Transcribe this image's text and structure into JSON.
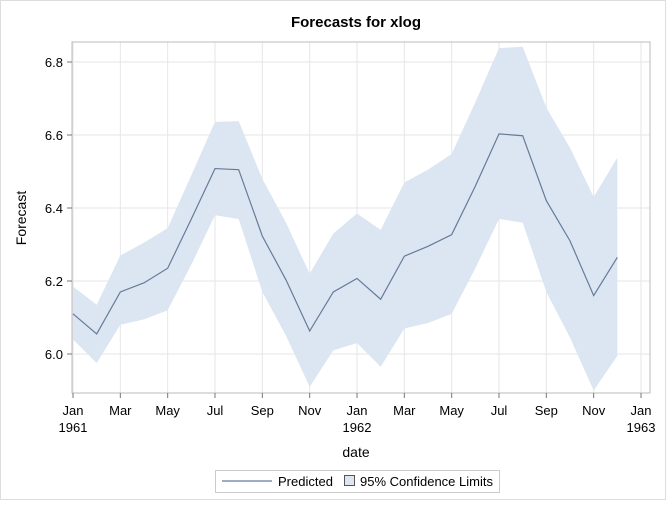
{
  "chart_data": {
    "type": "line",
    "title": "Forecasts for xlog",
    "xlabel": "date",
    "ylabel": "Forecast",
    "ylim": [
      5.89,
      6.86
    ],
    "xlim": [
      "1961-01",
      "1963-01"
    ],
    "grid": true,
    "legend_placement": "bottom",
    "yticks": [
      "6.0",
      "6.2",
      "6.4",
      "6.6",
      "6.8"
    ],
    "xticks": [
      {
        "label": "Jan",
        "sub": "1961",
        "m": 0
      },
      {
        "label": "Mar",
        "sub": "",
        "m": 2
      },
      {
        "label": "May",
        "sub": "",
        "m": 4
      },
      {
        "label": "Jul",
        "sub": "",
        "m": 6
      },
      {
        "label": "Sep",
        "sub": "",
        "m": 8
      },
      {
        "label": "Nov",
        "sub": "",
        "m": 10
      },
      {
        "label": "Jan",
        "sub": "1962",
        "m": 12
      },
      {
        "label": "Mar",
        "sub": "",
        "m": 14
      },
      {
        "label": "May",
        "sub": "",
        "m": 16
      },
      {
        "label": "Jul",
        "sub": "",
        "m": 18
      },
      {
        "label": "Sep",
        "sub": "",
        "m": 20
      },
      {
        "label": "Nov",
        "sub": "",
        "m": 22
      },
      {
        "label": "Jan",
        "sub": "1963",
        "m": 24
      }
    ],
    "x": [
      "1961-01",
      "1961-02",
      "1961-03",
      "1961-04",
      "1961-05",
      "1961-06",
      "1961-07",
      "1961-08",
      "1961-09",
      "1961-10",
      "1961-11",
      "1961-12",
      "1962-01",
      "1962-02",
      "1962-03",
      "1962-04",
      "1962-05",
      "1962-06",
      "1962-07",
      "1962-08",
      "1962-09",
      "1962-10",
      "1962-11",
      "1962-12"
    ],
    "series": [
      {
        "name": "Predicted",
        "color": "#667A99",
        "values": [
          6.11,
          6.055,
          6.17,
          6.195,
          6.235,
          6.37,
          6.508,
          6.505,
          6.323,
          6.203,
          6.063,
          6.17,
          6.207,
          6.15,
          6.268,
          6.295,
          6.327,
          6.46,
          6.603,
          6.598,
          6.42,
          6.31,
          6.16,
          6.265
        ]
      },
      {
        "name": "95% Confidence Limits",
        "color": "#DCE6F2",
        "upper": [
          6.185,
          6.135,
          6.27,
          6.305,
          6.345,
          6.49,
          6.636,
          6.638,
          6.48,
          6.36,
          6.22,
          6.33,
          6.385,
          6.34,
          6.47,
          6.505,
          6.548,
          6.69,
          6.838,
          6.842,
          6.675,
          6.565,
          6.43,
          6.538
        ],
        "lower": [
          6.04,
          5.975,
          6.08,
          6.095,
          6.12,
          6.245,
          6.38,
          6.37,
          6.17,
          6.05,
          5.91,
          6.01,
          6.03,
          5.965,
          6.07,
          6.085,
          6.11,
          6.235,
          6.37,
          6.36,
          6.17,
          6.045,
          5.9,
          5.995
        ]
      }
    ]
  }
}
